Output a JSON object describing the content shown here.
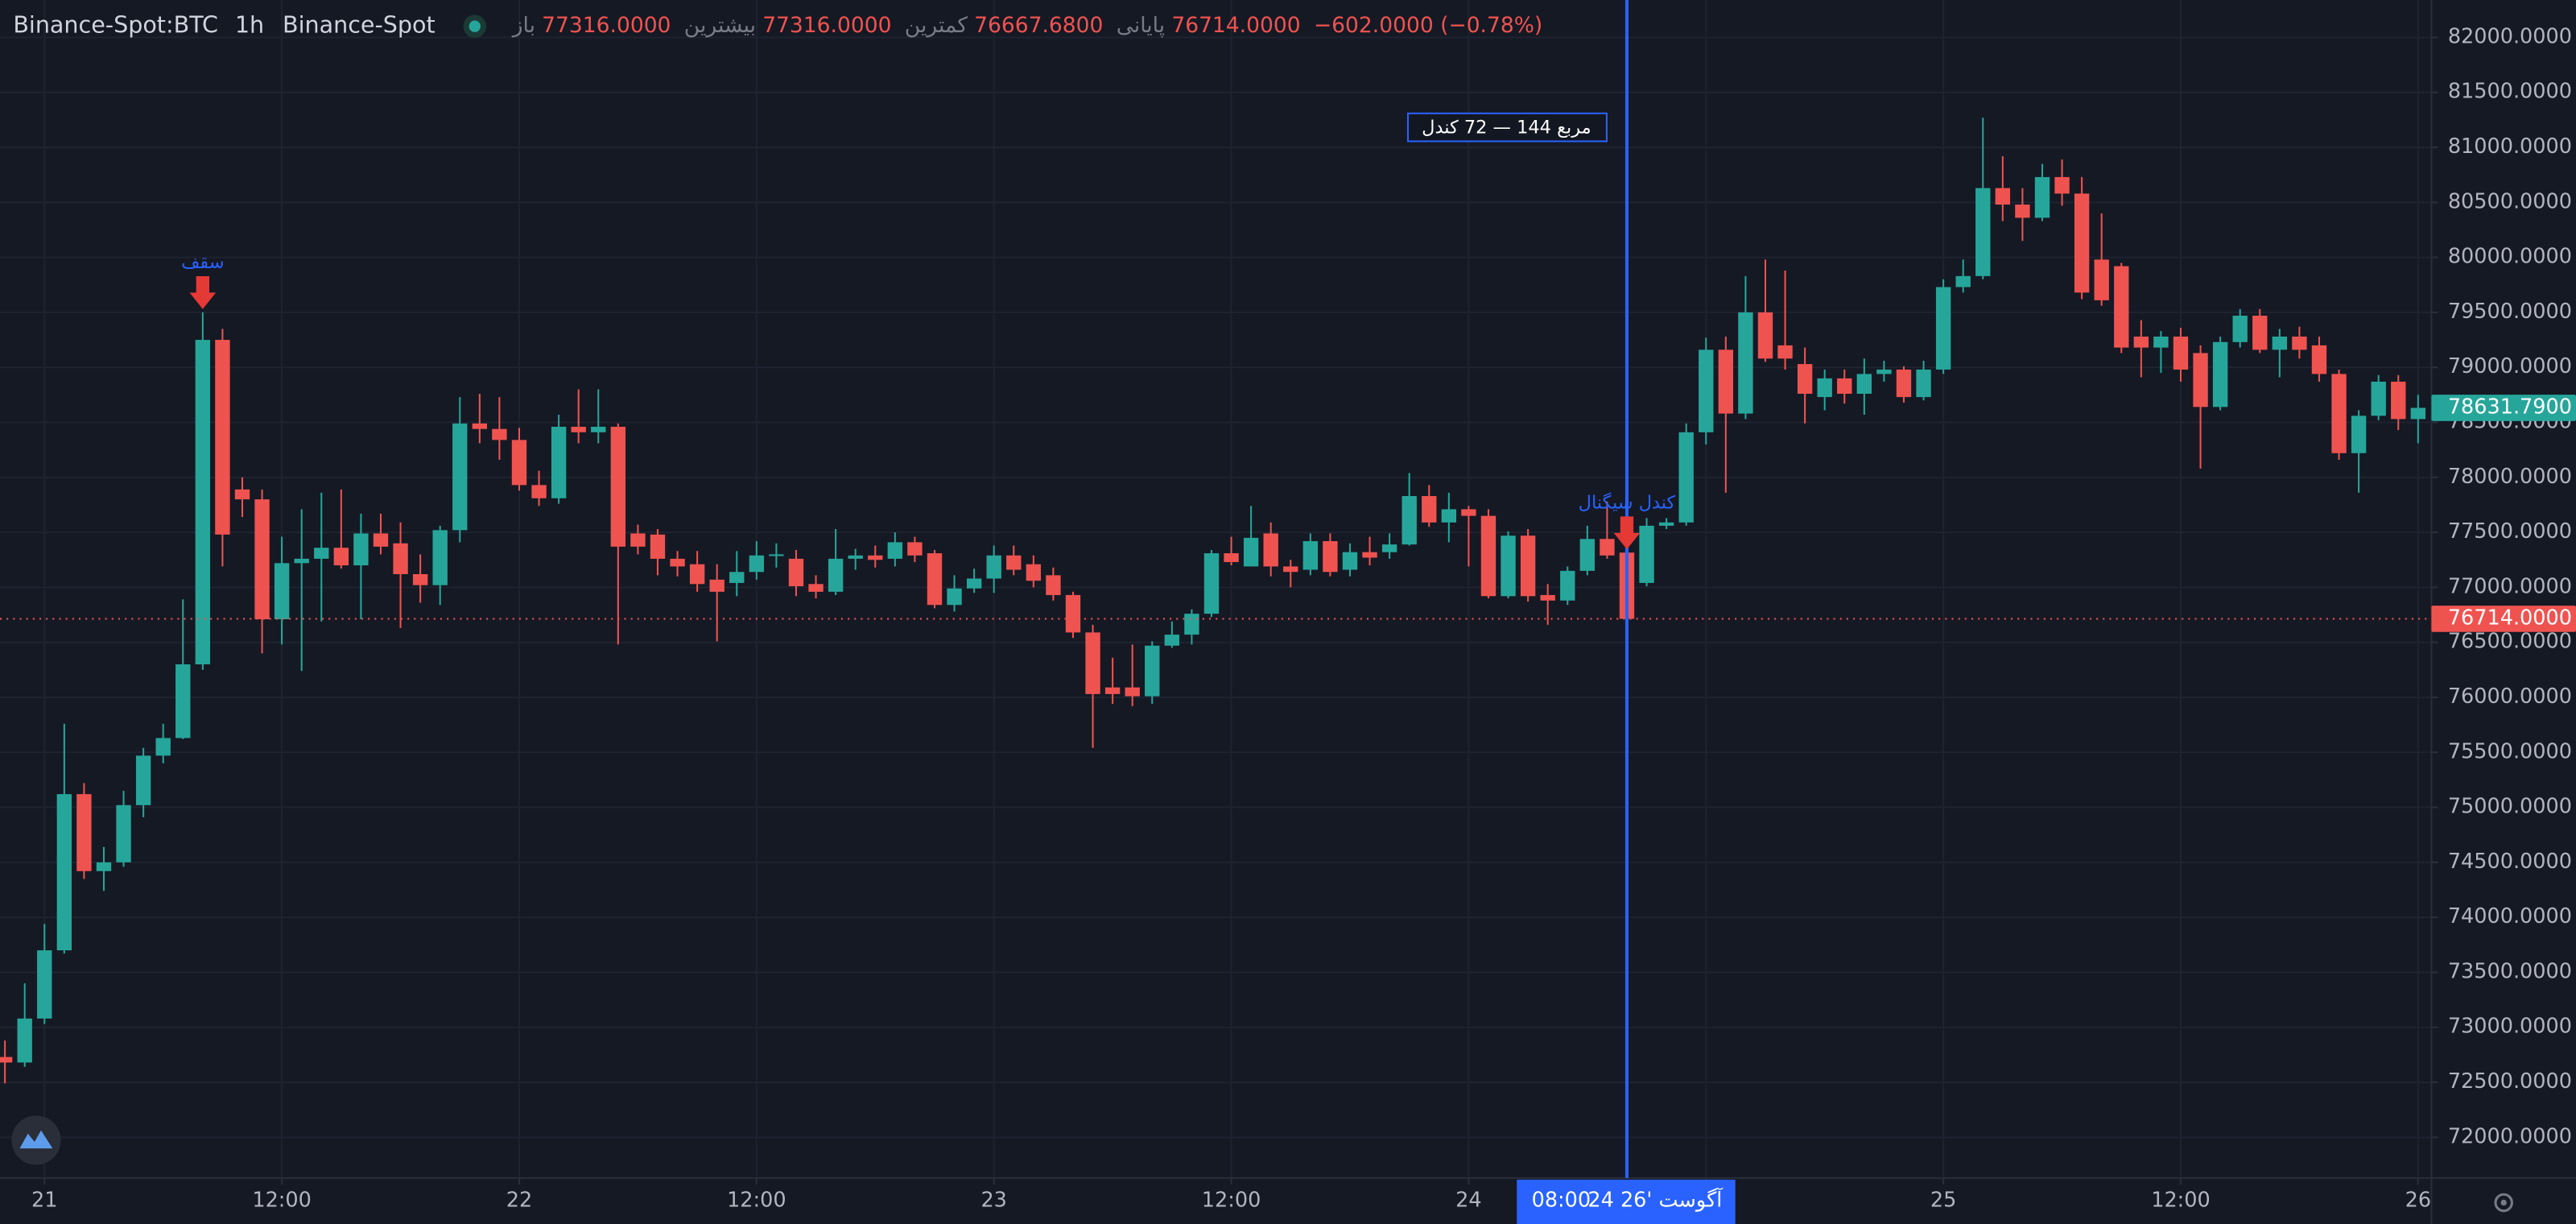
{
  "header": {
    "symbol": "Binance-Spot:BTC",
    "interval": "1h",
    "exchange": "Binance-Spot",
    "ohlc": [
      {
        "label": "باز",
        "value": "77316.0000"
      },
      {
        "label": "بیشترین",
        "value": "77316.0000"
      },
      {
        "label": "کمترین",
        "value": "76667.6800"
      },
      {
        "label": "پایانی",
        "value": "76714.0000"
      }
    ],
    "change": "−602.0000 (−0.78%)"
  },
  "box_label": "مربع 144 — 72 کندل",
  "chart_data": {
    "type": "candlestick",
    "up_color": "#26a69a",
    "down_color": "#ef5350",
    "grid": true,
    "x": [
      "2026-08-20 22:00",
      "2026-08-20 23:00",
      "2026-08-21 00:00",
      "2026-08-21 01:00",
      "2026-08-21 02:00",
      "2026-08-21 03:00",
      "2026-08-21 04:00",
      "2026-08-21 05:00",
      "2026-08-21 06:00",
      "2026-08-21 07:00",
      "2026-08-21 08:00",
      "2026-08-21 09:00",
      "2026-08-21 10:00",
      "2026-08-21 11:00",
      "2026-08-21 12:00",
      "2026-08-21 13:00",
      "2026-08-21 14:00",
      "2026-08-21 15:00",
      "2026-08-21 16:00",
      "2026-08-21 17:00",
      "2026-08-21 18:00",
      "2026-08-21 19:00",
      "2026-08-21 20:00",
      "2026-08-21 21:00",
      "2026-08-21 22:00",
      "2026-08-21 23:00",
      "2026-08-22 00:00",
      "2026-08-22 01:00",
      "2026-08-22 02:00",
      "2026-08-22 03:00",
      "2026-08-22 04:00",
      "2026-08-22 05:00",
      "2026-08-22 06:00",
      "2026-08-22 07:00",
      "2026-08-22 08:00",
      "2026-08-22 09:00",
      "2026-08-22 10:00",
      "2026-08-22 11:00",
      "2026-08-22 12:00",
      "2026-08-22 13:00",
      "2026-08-22 14:00",
      "2026-08-22 15:00",
      "2026-08-22 16:00",
      "2026-08-22 17:00",
      "2026-08-22 18:00",
      "2026-08-22 19:00",
      "2026-08-22 20:00",
      "2026-08-22 21:00",
      "2026-08-22 22:00",
      "2026-08-22 23:00",
      "2026-08-23 00:00",
      "2026-08-23 01:00",
      "2026-08-23 02:00",
      "2026-08-23 03:00",
      "2026-08-23 04:00",
      "2026-08-23 05:00",
      "2026-08-23 06:00",
      "2026-08-23 07:00",
      "2026-08-23 08:00",
      "2026-08-23 09:00",
      "2026-08-23 10:00",
      "2026-08-23 11:00",
      "2026-08-23 12:00",
      "2026-08-23 13:00",
      "2026-08-23 14:00",
      "2026-08-23 15:00",
      "2026-08-23 16:00",
      "2026-08-23 17:00",
      "2026-08-23 18:00",
      "2026-08-23 19:00",
      "2026-08-23 20:00",
      "2026-08-23 21:00",
      "2026-08-23 22:00",
      "2026-08-23 23:00",
      "2026-08-24 00:00",
      "2026-08-24 01:00",
      "2026-08-24 02:00",
      "2026-08-24 03:00",
      "2026-08-24 04:00",
      "2026-08-24 05:00",
      "2026-08-24 06:00",
      "2026-08-24 07:00",
      "2026-08-24 08:00",
      "2026-08-24 09:00",
      "2026-08-24 10:00",
      "2026-08-24 11:00",
      "2026-08-24 12:00",
      "2026-08-24 13:00",
      "2026-08-24 14:00",
      "2026-08-24 15:00",
      "2026-08-24 16:00",
      "2026-08-24 17:00",
      "2026-08-24 18:00",
      "2026-08-24 19:00",
      "2026-08-24 20:00",
      "2026-08-24 21:00",
      "2026-08-24 22:00",
      "2026-08-24 23:00",
      "2026-08-25 00:00",
      "2026-08-25 01:00",
      "2026-08-25 02:00",
      "2026-08-25 03:00",
      "2026-08-25 04:00",
      "2026-08-25 05:00",
      "2026-08-25 06:00",
      "2026-08-25 07:00",
      "2026-08-25 08:00",
      "2026-08-25 09:00",
      "2026-08-25 10:00",
      "2026-08-25 11:00",
      "2026-08-25 12:00",
      "2026-08-25 13:00",
      "2026-08-25 14:00",
      "2026-08-25 15:00",
      "2026-08-25 16:00",
      "2026-08-25 17:00",
      "2026-08-25 18:00",
      "2026-08-25 19:00",
      "2026-08-25 20:00",
      "2026-08-25 21:00",
      "2026-08-25 22:00",
      "2026-08-25 23:00",
      "2026-08-26 00:00"
    ],
    "open": [
      72730,
      72680,
      73080,
      73700,
      75120,
      74420,
      74500,
      75020,
      75470,
      75630,
      76300,
      79250,
      77890,
      77800,
      76710,
      77220,
      77260,
      77360,
      77200,
      77490,
      77400,
      77120,
      77020,
      77520,
      78490,
      78440,
      78340,
      77930,
      77810,
      78460,
      78410,
      78460,
      77490,
      77480,
      77260,
      77210,
      77070,
      77040,
      77140,
      77290,
      77260,
      77030,
      76960,
      77260,
      77290,
      77260,
      77410,
      77310,
      76840,
      76990,
      77080,
      77290,
      77210,
      77110,
      76930,
      76590,
      76090,
      76090,
      76010,
      76470,
      76570,
      76760,
      77310,
      77190,
      77490,
      77190,
      77160,
      77420,
      77160,
      77320,
      77320,
      77390,
      77830,
      77590,
      77710,
      77650,
      76920,
      77470,
      76930,
      76880,
      77150,
      77440,
      77316,
      77040,
      77560,
      77590,
      78410,
      79160,
      78580,
      79500,
      79200,
      79030,
      78730,
      78900,
      78760,
      78940,
      78980,
      78730,
      78980,
      79730,
      79830,
      80630,
      80480,
      80360,
      80730,
      80580,
      79980,
      79920,
      79280,
      79180,
      79280,
      79130,
      78640,
      79230,
      79470,
      79160,
      79280,
      79200,
      78940,
      78220,
      78560,
      78870,
      78530
    ],
    "high": [
      72880,
      73400,
      73940,
      75760,
      75220,
      74640,
      75150,
      75540,
      75760,
      76890,
      79500,
      79350,
      78000,
      77890,
      77460,
      77710,
      77860,
      77890,
      77670,
      77670,
      77590,
      77300,
      77560,
      78730,
      78760,
      78730,
      78450,
      78060,
      78570,
      78800,
      78800,
      78490,
      77570,
      77530,
      77330,
      77330,
      77210,
      77330,
      77420,
      77400,
      77340,
      77110,
      77530,
      77350,
      77380,
      77500,
      77460,
      77340,
      77110,
      77170,
      77380,
      77380,
      77290,
      77180,
      76960,
      76660,
      76360,
      76480,
      76510,
      76690,
      76800,
      77340,
      77460,
      77740,
      77590,
      77250,
      77490,
      77490,
      77400,
      77460,
      77490,
      78040,
      77930,
      77860,
      77740,
      77710,
      77510,
      77530,
      77030,
      77190,
      77560,
      77780,
      77316,
      77630,
      77630,
      78490,
      79270,
      79280,
      79830,
      79980,
      79880,
      79180,
      78980,
      78980,
      79080,
      79060,
      79010,
      79060,
      79800,
      79980,
      81270,
      80920,
      80630,
      80850,
      80890,
      80730,
      80400,
      79950,
      79430,
      79330,
      79360,
      79200,
      79280,
      79530,
      79530,
      79350,
      79370,
      79280,
      78980,
      78610,
      78930,
      78930,
      78750
    ],
    "low": [
      72490,
      72640,
      73030,
      73670,
      74350,
      74240,
      74460,
      74910,
      75400,
      75620,
      76250,
      77190,
      77640,
      76400,
      76480,
      76240,
      76690,
      77170,
      76710,
      77300,
      76630,
      76860,
      76840,
      77410,
      78310,
      78160,
      77880,
      77740,
      77760,
      78310,
      78310,
      76480,
      77300,
      77110,
      77100,
      76960,
      76510,
      76920,
      77070,
      77180,
      76920,
      76900,
      76930,
      77160,
      77180,
      77190,
      77230,
      76810,
      76780,
      76950,
      76950,
      77110,
      77000,
      76880,
      76540,
      75540,
      75940,
      75920,
      75940,
      76450,
      76480,
      76730,
      77200,
      77190,
      77100,
      77000,
      77110,
      77100,
      77100,
      77200,
      77260,
      77380,
      77550,
      77410,
      77190,
      76900,
      76900,
      76870,
      76660,
      76840,
      77110,
      77260,
      76667.68,
      77010,
      77530,
      77560,
      78300,
      77860,
      78530,
      79050,
      78980,
      78490,
      78610,
      78670,
      78570,
      78870,
      78680,
      78700,
      78940,
      79680,
      79800,
      80330,
      80150,
      80330,
      80470,
      79620,
      79560,
      79130,
      78910,
      78950,
      78870,
      78080,
      78610,
      79180,
      79130,
      78910,
      79080,
      78870,
      78160,
      77860,
      78520,
      78430,
      78310
    ],
    "close": [
      72680,
      73080,
      73700,
      75120,
      74420,
      74500,
      75020,
      75470,
      75630,
      76300,
      79250,
      77480,
      77800,
      76710,
      77220,
      77260,
      77360,
      77200,
      77490,
      77370,
      77120,
      77020,
      77520,
      78490,
      78440,
      78340,
      77930,
      77810,
      78460,
      78410,
      78460,
      77370,
      77370,
      77260,
      77190,
      77030,
      76960,
      77140,
      77290,
      77300,
      77010,
      76960,
      77260,
      77290,
      77250,
      77410,
      77290,
      76840,
      76990,
      77080,
      77290,
      77160,
      77060,
      76930,
      76590,
      76030,
      76030,
      76010,
      76470,
      76570,
      76760,
      77310,
      77230,
      77450,
      77190,
      77140,
      77420,
      77140,
      77320,
      77270,
      77390,
      77830,
      77590,
      77710,
      77650,
      76920,
      77470,
      76920,
      76880,
      77150,
      77440,
      77290,
      76714,
      77560,
      77590,
      78410,
      79160,
      78580,
      79500,
      79080,
      79080,
      78760,
      78900,
      78760,
      78940,
      78980,
      78730,
      78980,
      79730,
      79830,
      80630,
      80480,
      80360,
      80730,
      80580,
      79680,
      79610,
      79180,
      79180,
      79280,
      78980,
      78640,
      79230,
      79470,
      79160,
      79280,
      79160,
      78940,
      78220,
      78560,
      78870,
      78530,
      78631.79
    ],
    "ylim": [
      71630,
      82340
    ],
    "yticks": [
      {
        "value": 72000,
        "label": "72000.0000"
      },
      {
        "value": 72500,
        "label": "72500.0000"
      },
      {
        "value": 73000,
        "label": "73000.0000"
      },
      {
        "value": 73500,
        "label": "73500.0000"
      },
      {
        "value": 74000,
        "label": "74000.0000"
      },
      {
        "value": 74500,
        "label": "74500.0000"
      },
      {
        "value": 75000,
        "label": "75000.0000"
      },
      {
        "value": 75500,
        "label": "75500.0000"
      },
      {
        "value": 76000,
        "label": "76000.0000"
      },
      {
        "value": 76500,
        "label": "76500.0000"
      },
      {
        "value": 77000,
        "label": "77000.0000"
      },
      {
        "value": 77500,
        "label": "77500.0000"
      },
      {
        "value": 78000,
        "label": "78000.0000"
      },
      {
        "value": 78500,
        "label": "78500.0000"
      },
      {
        "value": 79000,
        "label": "79000.0000"
      },
      {
        "value": 79500,
        "label": "79500.0000"
      },
      {
        "value": 80000,
        "label": "80000.0000"
      },
      {
        "value": 80500,
        "label": "80500.0000"
      },
      {
        "value": 81000,
        "label": "81000.0000"
      },
      {
        "value": 81500,
        "label": "81500.0000"
      },
      {
        "value": 82000,
        "label": "82000.0000"
      }
    ],
    "xticks": [
      {
        "value": "2026-08-21 00:00",
        "label": "21"
      },
      {
        "value": "2026-08-21 12:00",
        "label": "12:00"
      },
      {
        "value": "2026-08-22 00:00",
        "label": "22"
      },
      {
        "value": "2026-08-22 12:00",
        "label": "12:00"
      },
      {
        "value": "2026-08-23 00:00",
        "label": "23"
      },
      {
        "value": "2026-08-23 12:00",
        "label": "12:00"
      },
      {
        "value": "2026-08-24 00:00",
        "label": "24"
      },
      {
        "value": "2026-08-24 12:00",
        "label": "12:00"
      },
      {
        "value": "2026-08-25 00:00",
        "label": "25"
      },
      {
        "value": "2026-08-25 12:00",
        "label": "12:00"
      },
      {
        "value": "2026-08-26 00:00",
        "label": "26"
      }
    ],
    "price_tags": [
      {
        "value": 78631.79,
        "label": "78631.7900",
        "color": "#26a69a",
        "dashed_line": false
      },
      {
        "value": 76714,
        "label": "76714.0000",
        "color": "#ef5350",
        "dashed_line": true
      }
    ],
    "crosshair": {
      "x": "2026-08-24 08:00",
      "date_label": "24 آگوست '26",
      "time_label": "08:00",
      "color": "#2962ff"
    },
    "annotations": [
      {
        "text": "سقف",
        "x": "2026-08-21 08:00",
        "color": "#e53935"
      },
      {
        "text": "کندل سیگنال",
        "x": "2026-08-24 08:00",
        "color": "#e53935"
      }
    ]
  }
}
